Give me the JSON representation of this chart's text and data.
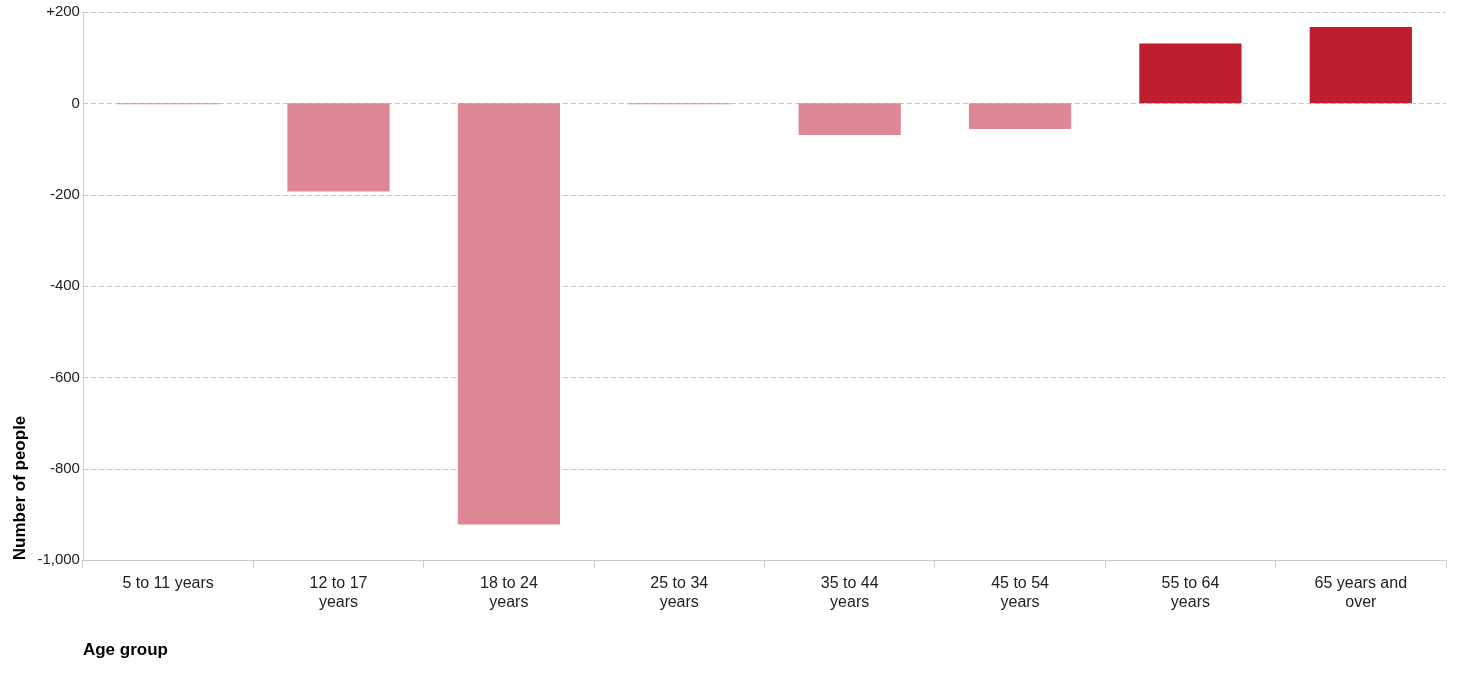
{
  "chart_data": {
    "type": "bar",
    "xlabel": "Age group",
    "ylabel": "Number of people",
    "categories": [
      "5 to 11 years",
      "12 to 17 years",
      "18 to 24 years",
      "25 to 34 years",
      "35 to 44 years",
      "45 to 54 years",
      "55 to 64 years",
      "65 years and over"
    ],
    "values": [
      -2,
      -193,
      -922,
      -2,
      -69,
      -56,
      131,
      167
    ],
    "colors": [
      "#de8796",
      "#de8796",
      "#de8796",
      "#de8796",
      "#de8796",
      "#de8796",
      "#be1e2d",
      "#be1e2d"
    ],
    "ylim": [
      -1000,
      200
    ],
    "yticks": [
      {
        "value": 200,
        "label": "+200"
      },
      0,
      -200,
      -400,
      -600,
      -800,
      {
        "value": -1000,
        "label": "-1,000"
      }
    ],
    "grid": "y",
    "legend": false
  }
}
